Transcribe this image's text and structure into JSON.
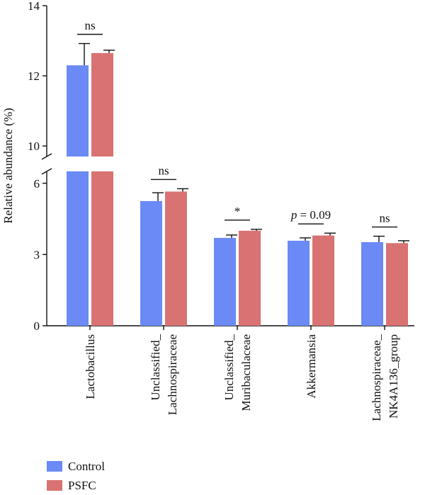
{
  "chart_data": {
    "type": "bar",
    "ylabel": "Relative abundance (%)",
    "categories": [
      [
        "Lactobacillus"
      ],
      [
        "Unclassified_",
        "Lachnospiraceae"
      ],
      [
        "Unclassified_",
        "Muribaculaceae"
      ],
      [
        "Akkermansia"
      ],
      [
        "Lachnospiraceae_",
        "NK4A136_group"
      ]
    ],
    "series": [
      {
        "name": "Control",
        "color": "#6b8af5",
        "values": [
          12.3,
          5.25,
          3.7,
          3.58,
          3.52
        ],
        "errors": [
          0.62,
          0.35,
          0.12,
          0.12,
          0.25
        ]
      },
      {
        "name": "PSFC",
        "color": "#d97272",
        "values": [
          12.65,
          5.65,
          4.0,
          3.8,
          3.48
        ],
        "errors": [
          0.08,
          0.12,
          0.06,
          0.1,
          0.1
        ]
      }
    ],
    "y_axis": {
      "broken": true,
      "lower_range": [
        0,
        6.5
      ],
      "upper_range": [
        9.7,
        14
      ],
      "lower_ticks": [
        0,
        3,
        6
      ],
      "upper_ticks": [
        10,
        12,
        14
      ]
    },
    "annotations": [
      {
        "category": 0,
        "text": "ns"
      },
      {
        "category": 1,
        "text": "ns"
      },
      {
        "category": 2,
        "text": "*"
      },
      {
        "category": 3,
        "text": "p = 0.09",
        "italic_prefix": "p"
      },
      {
        "category": 4,
        "text": "ns"
      }
    ]
  },
  "legend": {
    "items": [
      {
        "label": "Control",
        "color": "#6b8af5"
      },
      {
        "label": "PSFC",
        "color": "#d97272"
      }
    ]
  }
}
